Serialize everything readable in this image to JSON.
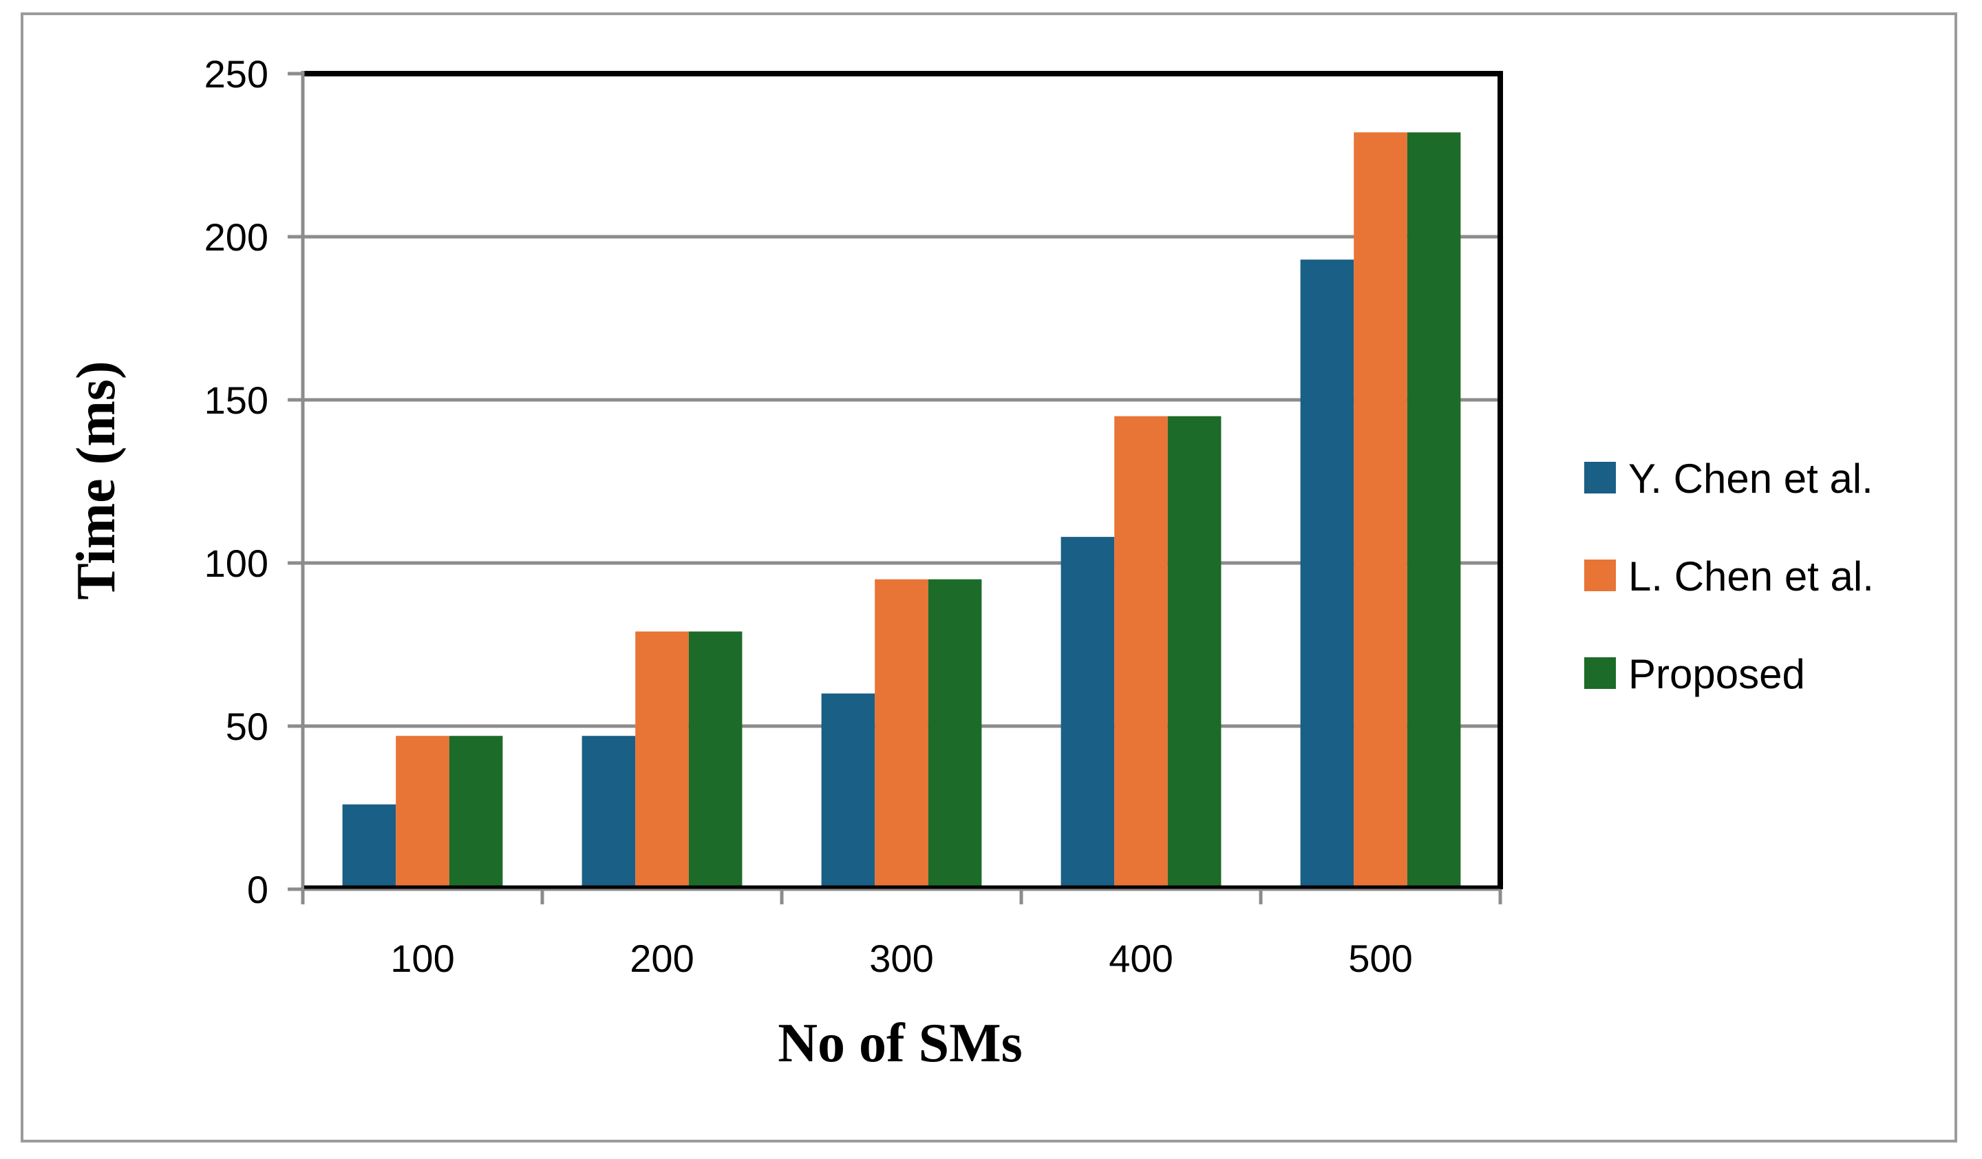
{
  "chart_data": {
    "type": "bar",
    "title": "",
    "xlabel": "No of SMs",
    "ylabel": "Time (ms)",
    "categories": [
      "100",
      "200",
      "300",
      "400",
      "500"
    ],
    "series": [
      {
        "name": "Y. Chen et al.",
        "color": "#1a5f85",
        "values": [
          26,
          47,
          60,
          108,
          193
        ]
      },
      {
        "name": "L. Chen et al.",
        "color": "#e87436",
        "values": [
          47,
          79,
          95,
          145,
          232
        ]
      },
      {
        "name": "Proposed",
        "color": "#1c6b29",
        "values": [
          47,
          79,
          95,
          145,
          232
        ]
      }
    ],
    "ylim": [
      0,
      250
    ],
    "yticks": [
      0,
      50,
      100,
      150,
      200,
      250
    ],
    "grid": true,
    "legend_position": "right"
  }
}
